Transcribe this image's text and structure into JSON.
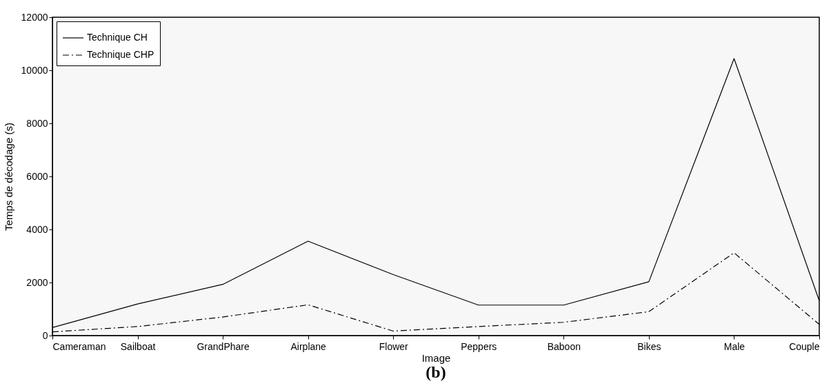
{
  "chart_data": {
    "type": "line",
    "xlabel": "Image",
    "ylabel": "Temps de décodage (s)",
    "annotations": [
      "(b)"
    ],
    "categories": [
      "Cameraman",
      "Sailboat",
      "GrandPhare",
      "Airplane",
      "Flower",
      "Peppers",
      "Baboon",
      "Bikes",
      "Male",
      "Couple"
    ],
    "series": [
      {
        "name": "Technique CH",
        "color": "#000000",
        "line_style": "solid",
        "values": [
          300,
          1190,
          1930,
          3560,
          2300,
          1150,
          1150,
          2030,
          10440,
          1310
        ]
      },
      {
        "name": "Technique CHP",
        "color": "#000000",
        "line_style": "dashed",
        "values": [
          140,
          340,
          700,
          1160,
          170,
          340,
          500,
          900,
          3120,
          420
        ]
      }
    ],
    "ylim": [
      0,
      12000
    ],
    "yticks": [
      0,
      2000,
      4000,
      6000,
      8000,
      10000,
      12000
    ],
    "grid": false,
    "legend": "top left",
    "marker": "none"
  }
}
